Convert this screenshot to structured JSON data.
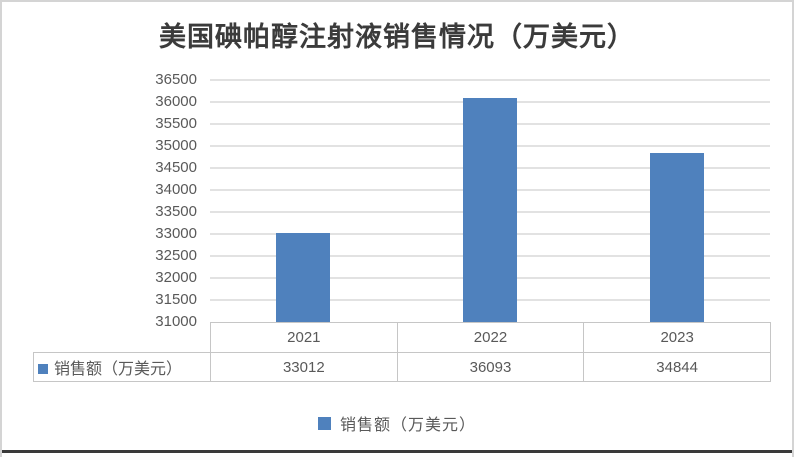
{
  "chart_data": {
    "type": "bar",
    "title": "美国碘帕醇注射液销售情况（万美元）",
    "categories": [
      "2021",
      "2022",
      "2023"
    ],
    "series": [
      {
        "name": "销售额（万美元）",
        "values": [
          33012,
          36093,
          34844
        ]
      }
    ],
    "ylim": [
      31000,
      36500
    ],
    "ytick_step": 500,
    "ytick_labels": [
      "36500",
      "36000",
      "35500",
      "35000",
      "34500",
      "34000",
      "33500",
      "33000",
      "32500",
      "32000",
      "31500",
      "31000"
    ],
    "grid": true,
    "legend_position": "bottom",
    "data_table_shown": true,
    "colors": {
      "bar": "#4F81BD",
      "gridline": "#E2E2E2",
      "table_border": "#C6C6C6",
      "axis_text": "#595959",
      "title_text": "#3B3B3B",
      "frame_border": "#D4D4D4",
      "bottom_line": "#3A3A3A"
    }
  }
}
